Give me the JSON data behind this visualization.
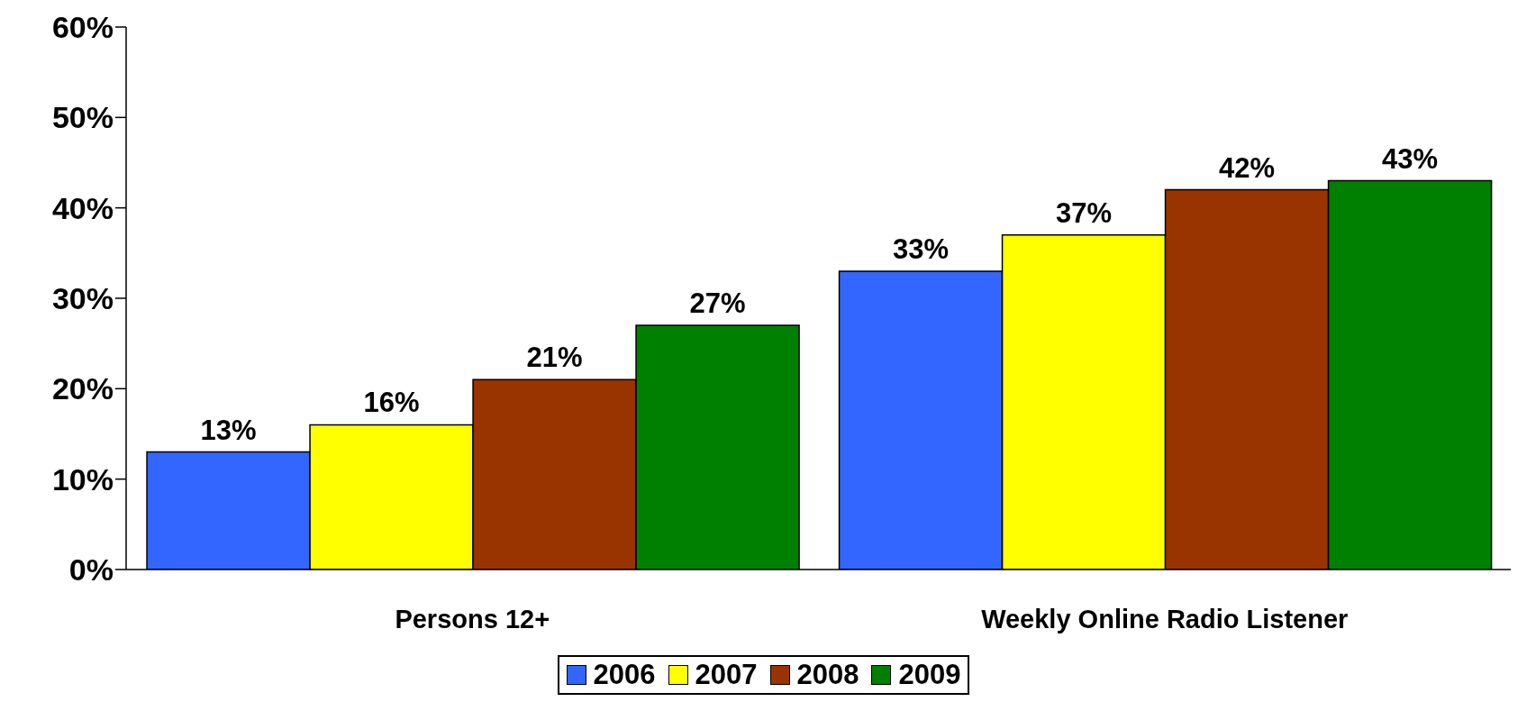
{
  "chart_data": {
    "type": "bar",
    "categories": [
      "Persons 12+",
      "Weekly Online Radio Listener"
    ],
    "series": [
      {
        "name": "2006",
        "color": "#3366ff",
        "values": [
          13,
          33
        ],
        "value_labels": [
          "13%",
          "33%"
        ]
      },
      {
        "name": "2007",
        "color": "#ffff00",
        "values": [
          16,
          37
        ],
        "value_labels": [
          "16%",
          "37%"
        ]
      },
      {
        "name": "2008",
        "color": "#993300",
        "values": [
          21,
          42
        ],
        "value_labels": [
          "21%",
          "42%"
        ]
      },
      {
        "name": "2009",
        "color": "#008000",
        "values": [
          27,
          43
        ],
        "value_labels": [
          "27%",
          "43%"
        ]
      }
    ],
    "ylim": [
      0,
      60
    ],
    "yticks": [
      {
        "value": 0,
        "label": "0%"
      },
      {
        "value": 10,
        "label": "10%"
      },
      {
        "value": 20,
        "label": "20%"
      },
      {
        "value": 30,
        "label": "30%"
      },
      {
        "value": 40,
        "label": "40%"
      },
      {
        "value": 50,
        "label": "50%"
      },
      {
        "value": 60,
        "label": "60%"
      }
    ],
    "grid": false,
    "legend": "bottom"
  }
}
